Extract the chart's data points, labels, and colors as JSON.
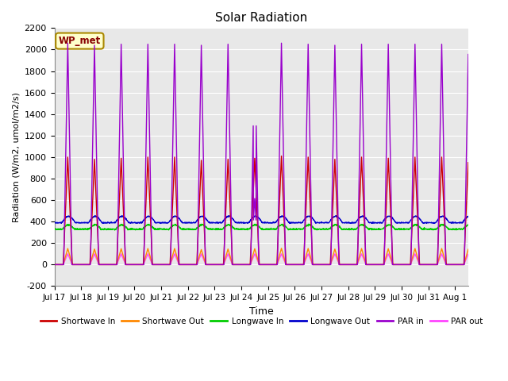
{
  "title": "Solar Radiation",
  "xlabel": "Time",
  "ylabel": "Radiation (W/m2, umol/m2/s)",
  "ylim": [
    -200,
    2200
  ],
  "xlim": [
    0.0,
    15.5
  ],
  "yticks": [
    -200,
    0,
    200,
    400,
    600,
    800,
    1000,
    1200,
    1400,
    1600,
    1800,
    2000,
    2200
  ],
  "xtick_labels": [
    "Jul 17",
    "Jul 18",
    "Jul 19",
    "Jul 20",
    "Jul 21",
    "Jul 22",
    "Jul 23",
    "Jul 24",
    "Jul 25",
    "Jul 26",
    "Jul 27",
    "Jul 28",
    "Jul 29",
    "Jul 30",
    "Jul 31",
    "Aug 1"
  ],
  "bg_color": "#e8e8e8",
  "grid_color": "white",
  "annotation_text": "WP_met",
  "annotation_bg": "#ffffcc",
  "annotation_border": "#aa8800",
  "series": {
    "shortwave_in": {
      "color": "#cc0000",
      "label": "Shortwave In"
    },
    "shortwave_out": {
      "color": "#ff8800",
      "label": "Shortwave Out"
    },
    "longwave_in": {
      "color": "#00cc00",
      "label": "Longwave In"
    },
    "longwave_out": {
      "color": "#0000cc",
      "label": "Longwave Out"
    },
    "par_in": {
      "color": "#9900cc",
      "label": "PAR in"
    },
    "par_out": {
      "color": "#ff44ff",
      "label": "PAR out"
    }
  },
  "legend_entries": [
    {
      "label": "Shortwave In",
      "color": "#cc0000"
    },
    {
      "label": "Shortwave Out",
      "color": "#ff8800"
    },
    {
      "label": "Longwave In",
      "color": "#00cc00"
    },
    {
      "label": "Longwave Out",
      "color": "#0000cc"
    },
    {
      "label": "PAR in",
      "color": "#9900cc"
    },
    {
      "label": "PAR out",
      "color": "#ff44ff"
    }
  ]
}
